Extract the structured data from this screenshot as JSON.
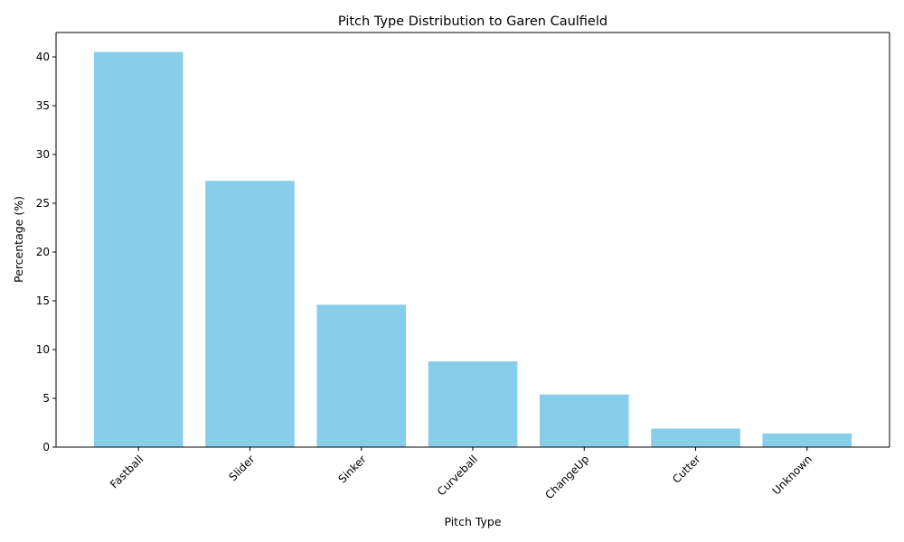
{
  "chart_data": {
    "type": "bar",
    "title": "Pitch Type Distribution to Garen Caulfield",
    "xlabel": "Pitch Type",
    "ylabel": "Percentage (%)",
    "categories": [
      "Fastball",
      "Slider",
      "Sinker",
      "Curveball",
      "ChangeUp",
      "Cutter",
      "Unknown"
    ],
    "values": [
      40.5,
      27.3,
      14.6,
      8.8,
      5.4,
      1.9,
      1.4
    ],
    "ylim": [
      0,
      42.5
    ],
    "yticks": [
      0,
      5,
      10,
      15,
      20,
      25,
      30,
      35,
      40
    ],
    "ytick_labels": [
      "0",
      "5",
      "10",
      "15",
      "20",
      "25",
      "30",
      "35",
      "40"
    ],
    "grid": false,
    "legend": "none",
    "bar_color": "#87ceeb",
    "xtick_rotation": 45
  }
}
